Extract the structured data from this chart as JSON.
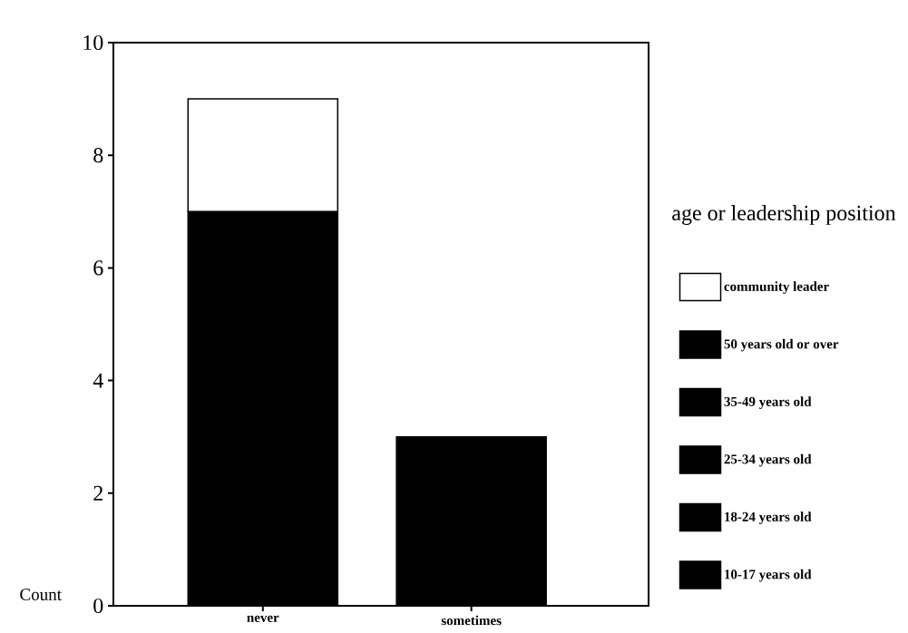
{
  "chart_data": {
    "type": "bar",
    "stacked": true,
    "ylabel": "Count",
    "legend_title": "age or leadership position",
    "categories": [
      "never",
      "sometimes"
    ],
    "series": [
      {
        "name": "10-17 years old",
        "color": "#000000",
        "values": [
          7,
          3
        ]
      },
      {
        "name": "18-24 years old",
        "color": "#000000",
        "values": [
          null,
          null
        ]
      },
      {
        "name": "25-34 years old",
        "color": "#000000",
        "values": [
          null,
          null
        ]
      },
      {
        "name": "35-49 years old",
        "color": "#000000",
        "values": [
          null,
          null
        ]
      },
      {
        "name": "50 years old or over",
        "color": "#000000",
        "values": [
          null,
          null
        ]
      },
      {
        "name": "community leader",
        "color": "#ffffff",
        "values": [
          2,
          null
        ]
      }
    ],
    "ylim": [
      0,
      10
    ],
    "yticks": [
      0,
      2,
      4,
      6,
      8,
      10
    ],
    "grid": false,
    "legend": "right"
  }
}
